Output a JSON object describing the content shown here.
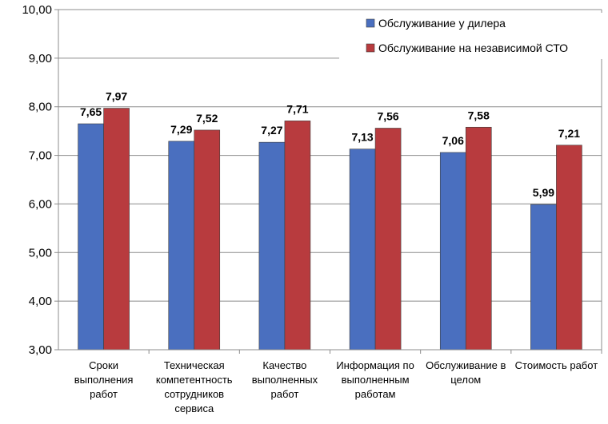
{
  "chart_data": {
    "type": "bar",
    "categories": [
      [
        "Сроки",
        "выполнения",
        "работ"
      ],
      [
        "Техническая",
        "компетентность",
        "сотрудников",
        "сервиса"
      ],
      [
        "Качество",
        "выполненных",
        "работ"
      ],
      [
        "Информация по",
        "выполненным",
        "работам"
      ],
      [
        "Обслуживание в",
        "целом"
      ],
      [
        "Стоимость работ"
      ]
    ],
    "series": [
      {
        "name": "Обслуживание у дилера",
        "color": "#4a6fbf",
        "values": [
          7.65,
          7.29,
          7.27,
          7.13,
          7.06,
          5.99
        ],
        "labels": [
          "7,65",
          "7,29",
          "7,27",
          "7,13",
          "7,06",
          "5,99"
        ]
      },
      {
        "name": "Обслуживание на независимой СТО",
        "color": "#b83b3e",
        "values": [
          7.97,
          7.52,
          7.71,
          7.56,
          7.58,
          7.21
        ],
        "labels": [
          "7,97",
          "7,52",
          "7,71",
          "7,56",
          "7,58",
          "7,21"
        ]
      }
    ],
    "ylim": [
      3,
      10
    ],
    "yticks": [
      "3,00",
      "4,00",
      "5,00",
      "6,00",
      "7,00",
      "8,00",
      "9,00",
      "10,00"
    ],
    "grid": true,
    "legend_position": "top-right"
  }
}
